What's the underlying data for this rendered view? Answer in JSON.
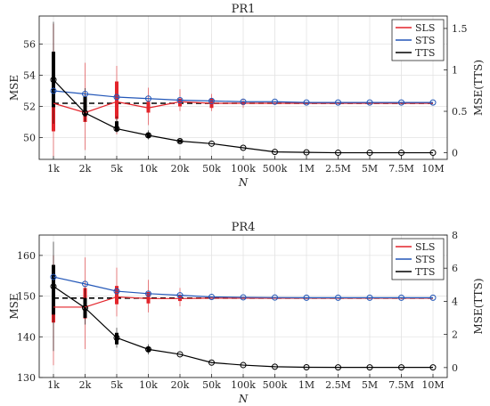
{
  "chart_data": [
    {
      "type": "line",
      "title": "PR1",
      "xlabel": "N",
      "ylabel": "MSE",
      "ylabel_right": "MSE(TTS)",
      "categories": [
        "1k",
        "2k",
        "5k",
        "10k",
        "20k",
        "50k",
        "100k",
        "500k",
        "1M",
        "2.5M",
        "5M",
        "7.5M",
        "10M"
      ],
      "ylim": [
        48.6,
        57.8
      ],
      "yticks": [
        50,
        52,
        54,
        56
      ],
      "ylim_right": [
        -0.08,
        1.65
      ],
      "yticks_right": [
        0,
        0.5,
        1,
        1.5
      ],
      "yticks_right_labels": [
        "0",
        "0.5",
        "1",
        "1.5"
      ],
      "grid": true,
      "legend_position": "top-right",
      "reference_line": 52.2,
      "series": [
        {
          "name": "SLS",
          "color": "#e3242b",
          "axis": "left",
          "values": [
            52.2,
            51.6,
            52.3,
            51.9,
            52.3,
            52.2,
            52.2,
            52.2,
            52.2,
            52.2,
            52.2,
            52.2,
            52.2
          ],
          "box": [
            [
              50.4,
              54.8
            ],
            [
              51.0,
              52.5
            ],
            [
              51.2,
              53.6
            ],
            [
              51.6,
              52.3
            ],
            [
              52.0,
              52.5
            ],
            [
              51.9,
              52.5
            ],
            [
              52.1,
              52.3
            ],
            null,
            null,
            null,
            null,
            null,
            null
          ],
          "whisker": [
            [
              48.8,
              57.3
            ],
            [
              49.2,
              54.8
            ],
            [
              50.2,
              54.6
            ],
            [
              50.8,
              53.2
            ],
            [
              51.7,
              53.1
            ],
            [
              51.7,
              52.8
            ],
            [
              51.9,
              52.5
            ],
            null,
            null,
            null,
            null,
            null,
            null
          ]
        },
        {
          "name": "STS",
          "color": "#2357b8",
          "axis": "left",
          "values": [
            53.0,
            52.8,
            52.6,
            52.5,
            52.4,
            52.35,
            52.3,
            52.3,
            52.25,
            52.25,
            52.25,
            52.25,
            52.25
          ]
        },
        {
          "name": "TTS",
          "color": "#000000",
          "axis": "right",
          "values": [
            0.88,
            0.48,
            0.29,
            0.21,
            0.14,
            0.11,
            0.06,
            0.01,
            0.005,
            0.0,
            0.0,
            0.0,
            0.0
          ],
          "box": [
            [
              0.55,
              1.22
            ],
            [
              0.44,
              0.68
            ],
            [
              0.26,
              0.38
            ],
            [
              0.18,
              0.24
            ],
            [
              0.12,
              0.16
            ],
            null,
            null,
            null,
            null,
            null,
            null,
            null,
            null
          ],
          "whisker": [
            [
              0.35,
              1.58
            ],
            [
              0.38,
              0.78
            ],
            [
              0.24,
              0.44
            ],
            [
              0.16,
              0.27
            ],
            null,
            null,
            null,
            null,
            null,
            null,
            null,
            null,
            null
          ]
        }
      ]
    },
    {
      "type": "line",
      "title": "PR4",
      "xlabel": "N",
      "ylabel": "MSE",
      "ylabel_right": "MSE(TTS)",
      "categories": [
        "1k",
        "2k",
        "5k",
        "10k",
        "20k",
        "50k",
        "100k",
        "500k",
        "1M",
        "2.5M",
        "5M",
        "7.5M",
        "10M"
      ],
      "ylim": [
        130,
        165
      ],
      "yticks": [
        130,
        140,
        150,
        160
      ],
      "ylim_right": [
        -0.6,
        8
      ],
      "yticks_right": [
        0,
        2,
        4,
        6,
        8
      ],
      "yticks_right_labels": [
        "0",
        "2",
        "4",
        "6",
        "8"
      ],
      "grid": true,
      "legend_position": "top-right",
      "reference_line": 149.5,
      "series": [
        {
          "name": "SLS",
          "color": "#e3242b",
          "axis": "left",
          "values": [
            147.3,
            147.3,
            149.8,
            149.4,
            149.4,
            149.5,
            149.5,
            149.5,
            149.5,
            149.5,
            149.5,
            149.5,
            149.5
          ],
          "box": [
            [
              143.5,
              150.5
            ],
            [
              144.5,
              152.0
            ],
            [
              148.0,
              152.5
            ],
            [
              148.2,
              151.0
            ],
            [
              148.8,
              150.2
            ],
            null,
            null,
            null,
            null,
            null,
            null,
            null,
            null
          ],
          "whisker": [
            [
              133.0,
              160.0
            ],
            [
              137.0,
              159.5
            ],
            [
              145.0,
              157.0
            ],
            [
              146.0,
              154.0
            ],
            [
              147.5,
              152.0
            ],
            null,
            null,
            null,
            null,
            null,
            null,
            null,
            null
          ]
        },
        {
          "name": "STS",
          "color": "#2357b8",
          "axis": "left",
          "values": [
            154.7,
            153.0,
            151.2,
            150.6,
            150.2,
            149.8,
            149.7,
            149.65,
            149.6,
            149.6,
            149.6,
            149.6,
            149.6
          ]
        },
        {
          "name": "TTS",
          "color": "#000000",
          "axis": "right",
          "values": [
            4.9,
            3.6,
            1.8,
            1.1,
            0.8,
            0.3,
            0.15,
            0.05,
            0.02,
            0.01,
            0.01,
            0.01,
            0.01
          ],
          "box": [
            [
              3.2,
              6.2
            ],
            [
              3.0,
              4.2
            ],
            [
              1.4,
              2.1
            ],
            [
              0.95,
              1.25
            ],
            null,
            null,
            null,
            null,
            null,
            null,
            null,
            null,
            null
          ],
          "whisker": [
            [
              1.0,
              7.6
            ],
            [
              2.6,
              4.8
            ],
            [
              1.2,
              2.4
            ],
            [
              0.8,
              1.4
            ],
            null,
            null,
            null,
            null,
            null,
            null,
            null,
            null,
            null
          ]
        }
      ]
    }
  ]
}
